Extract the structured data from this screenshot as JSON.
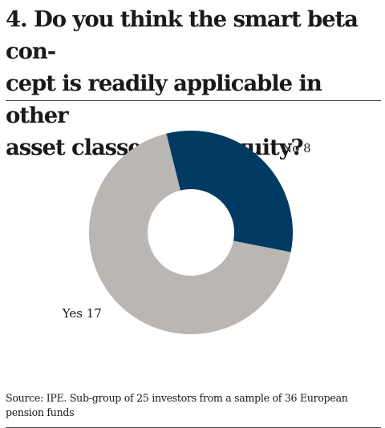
{
  "title_lines": [
    "4. Do you think the smart beta con-",
    "cept is readily applicable in other",
    "asset classes than equity?"
  ],
  "source_lines": [
    "Source: IPE. Sub-group of 25 investors from a sample of 36 European",
    "pension funds"
  ],
  "chart_data": {
    "type": "pie",
    "donut": true,
    "start_angle_deg": -14,
    "slices": [
      {
        "label": "No 8",
        "category": "No",
        "value": 8,
        "color": "#003a63",
        "label_position": "right"
      },
      {
        "label": "Yes 17",
        "category": "Yes",
        "value": 17,
        "color": "#b9b6b3",
        "label_position": "left"
      }
    ],
    "legend": "none"
  }
}
